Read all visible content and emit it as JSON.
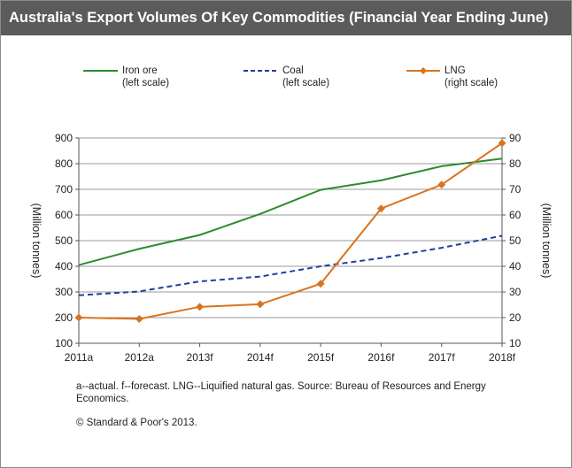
{
  "title": "Australia's Export Volumes Of Key Commodities (Financial Year Ending June)",
  "legend": [
    {
      "line1": "Iron ore",
      "line2": "(left scale)"
    },
    {
      "line1": "Coal",
      "line2": "(left scale)"
    },
    {
      "line1": "LNG",
      "line2": "(right scale)"
    }
  ],
  "note": "a--actual. f--forecast. LNG--Liquified natural gas. Source: Bureau of Resources and Energy Economics.",
  "copyright": "© Standard & Poor's 2013.",
  "colors": {
    "iron_ore": "#2e8b2e",
    "coal": "#1f3fa0",
    "lng": "#d9741f",
    "grid": "#9a9a9a"
  },
  "chart_data": {
    "type": "line",
    "title": "Australia's Export Volumes Of Key Commodities (Financial Year Ending June)",
    "categories": [
      "2011a",
      "2012a",
      "2013f",
      "2014f",
      "2015f",
      "2016f",
      "2017f",
      "2018f"
    ],
    "ylabel": "(Million tonnes)",
    "ylabel_right": "(Million tonnes)",
    "ylim": [
      100,
      900
    ],
    "ylim_right": [
      10,
      90
    ],
    "yticks": [
      "100",
      "200",
      "300",
      "400",
      "500",
      "600",
      "700",
      "800",
      "900"
    ],
    "yticks_right": [
      "10",
      "20",
      "30",
      "40",
      "50",
      "60",
      "70",
      "80",
      "90"
    ],
    "grid": true,
    "series": [
      {
        "name": "Iron ore",
        "axis": "left",
        "values": [
          405,
          468,
          522,
          604,
          698,
          735,
          790,
          820
        ]
      },
      {
        "name": "Coal",
        "axis": "left",
        "values": [
          287,
          302,
          341,
          360,
          400,
          432,
          472,
          519
        ]
      },
      {
        "name": "LNG",
        "axis": "right",
        "values": [
          20,
          19.5,
          24.2,
          25.2,
          33.2,
          62.5,
          71.8,
          88
        ]
      }
    ]
  }
}
